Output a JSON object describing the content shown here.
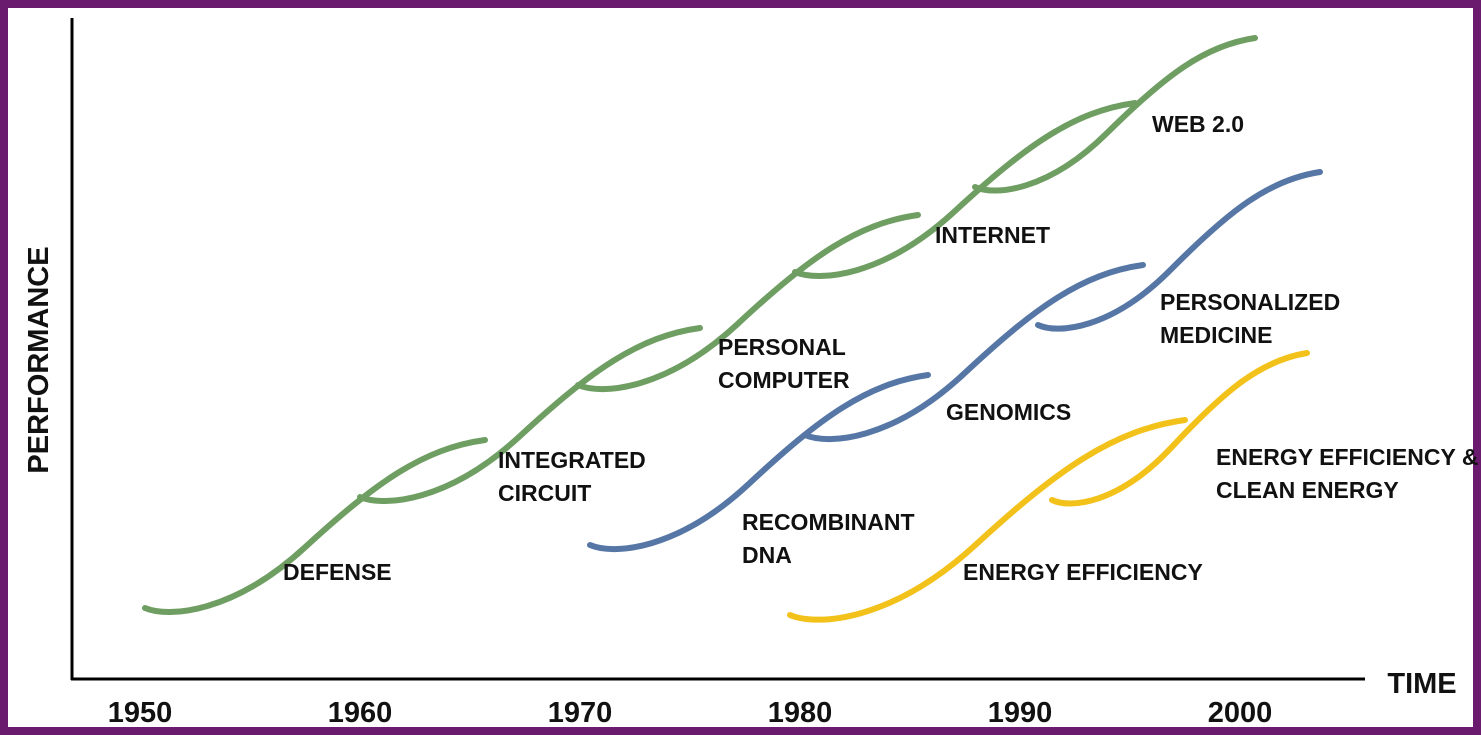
{
  "axes": {
    "y_label": "PERFORMANCE",
    "x_label": "TIME",
    "x_ticks": [
      "1950",
      "1960",
      "1970",
      "1980",
      "1990",
      "2000"
    ]
  },
  "curves": [
    {
      "group": "green",
      "lines": [
        "DEFENSE"
      ]
    },
    {
      "group": "green",
      "lines": [
        "INTEGRATED",
        "CIRCUIT"
      ]
    },
    {
      "group": "green",
      "lines": [
        "PERSONAL",
        "COMPUTER"
      ]
    },
    {
      "group": "green",
      "lines": [
        "INTERNET"
      ]
    },
    {
      "group": "green",
      "lines": [
        "WEB 2.0"
      ]
    },
    {
      "group": "blue",
      "lines": [
        "RECOMBINANT",
        "DNA"
      ]
    },
    {
      "group": "blue",
      "lines": [
        "GENOMICS"
      ]
    },
    {
      "group": "blue",
      "lines": [
        "PERSONALIZED",
        "MEDICINE"
      ]
    },
    {
      "group": "yellow",
      "lines": [
        "ENERGY EFFICIENCY"
      ]
    },
    {
      "group": "yellow",
      "lines": [
        "ENERGY EFFICIENCY &",
        "CLEAN ENERGY"
      ]
    }
  ]
}
